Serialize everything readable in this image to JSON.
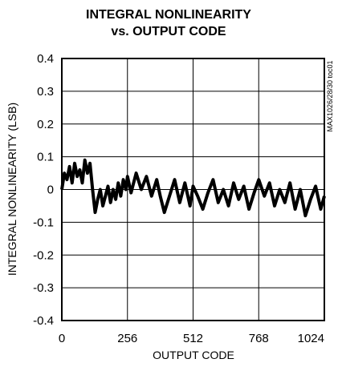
{
  "chart_data": {
    "type": "line",
    "title_line1": "INTEGRAL NONLINEARITY",
    "title_line2": "vs. OUTPUT CODE",
    "xlabel": "OUTPUT CODE",
    "ylabel": "INTEGRAL NONLINEARITY (LSB)",
    "side_note": "MAX1026/28/30 toc01",
    "xlim": [
      0,
      1024
    ],
    "ylim": [
      -0.4,
      0.4
    ],
    "x_ticks": [
      "0",
      "256",
      "512",
      "768",
      "1024"
    ],
    "y_ticks": [
      "0.4",
      "0.3",
      "0.2",
      "0.1",
      "0",
      "-0.1",
      "-0.2",
      "-0.3",
      "-0.4"
    ],
    "grid": true,
    "series": [
      {
        "x": [
          0,
          10,
          20,
          30,
          40,
          50,
          60,
          70,
          80,
          90,
          100,
          110,
          120,
          130,
          140,
          150,
          160,
          170,
          180,
          190,
          200,
          210,
          220,
          230,
          240,
          250,
          256,
          270,
          290,
          310,
          330,
          350,
          370,
          384,
          400,
          420,
          440,
          460,
          480,
          500,
          512,
          530,
          550,
          570,
          590,
          610,
          630,
          650,
          670,
          690,
          710,
          730,
          750,
          768,
          790,
          810,
          830,
          850,
          870,
          890,
          910,
          930,
          950,
          970,
          990,
          1010,
          1024
        ],
        "y": [
          0.0,
          0.05,
          0.03,
          0.07,
          0.02,
          0.08,
          0.04,
          0.06,
          0.02,
          0.09,
          0.05,
          0.08,
          0.0,
          -0.07,
          -0.03,
          0.0,
          -0.05,
          -0.02,
          0.01,
          -0.04,
          0.0,
          -0.03,
          0.02,
          -0.02,
          0.03,
          0.0,
          0.04,
          -0.01,
          0.05,
          0.0,
          0.04,
          -0.02,
          0.03,
          -0.02,
          -0.07,
          -0.02,
          0.03,
          -0.04,
          0.02,
          -0.05,
          0.01,
          -0.02,
          -0.06,
          -0.01,
          0.03,
          -0.04,
          0.0,
          -0.05,
          0.02,
          -0.03,
          0.01,
          -0.06,
          -0.01,
          0.03,
          -0.02,
          0.02,
          -0.05,
          0.0,
          -0.04,
          0.02,
          -0.06,
          0.0,
          -0.08,
          -0.03,
          0.01,
          -0.06,
          -0.02
        ]
      }
    ]
  }
}
